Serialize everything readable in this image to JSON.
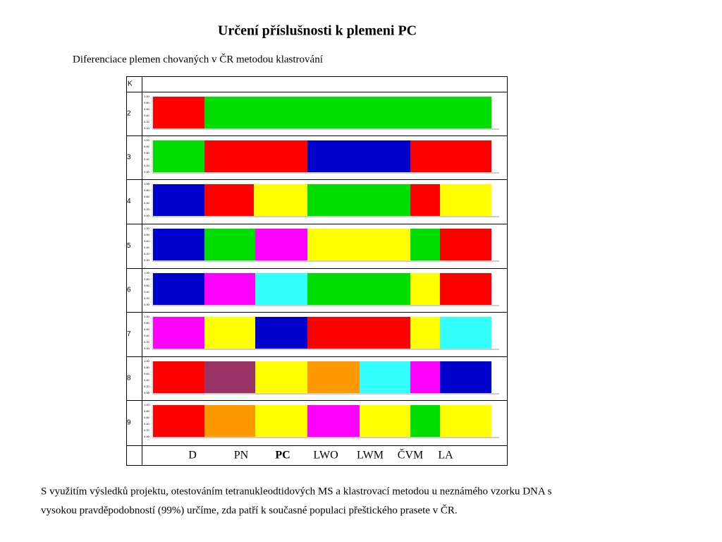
{
  "header": {
    "title": "Určení příslušnosti k plemeni PC",
    "subtitle": "Diferenciace  plemen chovaných v ČR metodou klastrování"
  },
  "table": {
    "column_header": "K",
    "rows": [
      {
        "k": "2"
      },
      {
        "k": "3"
      },
      {
        "k": "4"
      },
      {
        "k": "5"
      },
      {
        "k": "6"
      },
      {
        "k": "7"
      },
      {
        "k": "8"
      },
      {
        "k": "9"
      }
    ],
    "axis_ticks": [
      "1.00",
      "0.80",
      "0.60",
      "0.40",
      "0.20",
      "0.00"
    ],
    "breeds": [
      "D",
      "PN",
      "PC",
      "LWO",
      "LWM",
      "ČVM",
      "LA"
    ]
  },
  "footer": {
    "lines": [
      "S využitím výsledků  projektu, otestováním tetranukleodtidových MS a klastrovací metodou u neznámého vzorku DNA s",
      "vysokou pravděpodobností (99%) určíme, zda patří k současné populaci přeštického prasete v ČR."
    ]
  }
}
